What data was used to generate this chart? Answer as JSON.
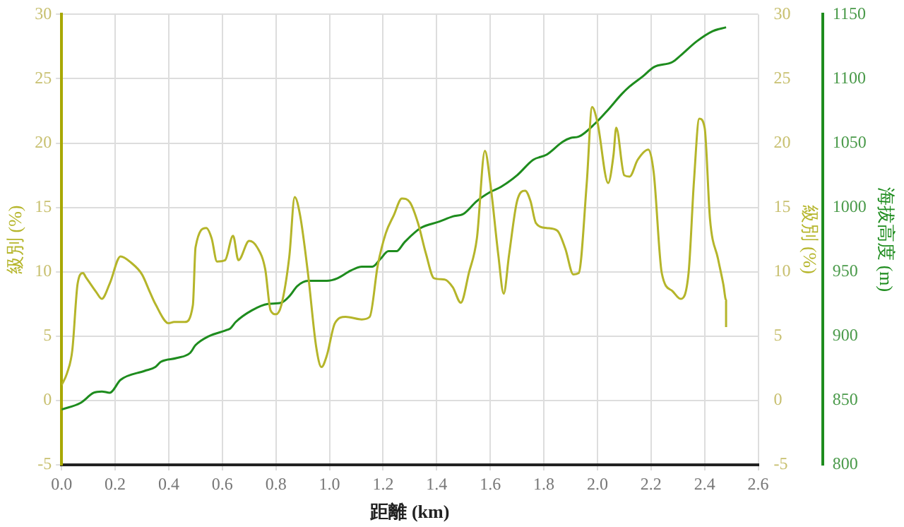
{
  "chart_data": {
    "type": "line",
    "xlabel": "距離 (km)",
    "ylabel": "級別 (%)",
    "y2label": "海拔高度 (m)",
    "y3label": "級別 (%)",
    "xlim": [
      0,
      2.6
    ],
    "xticks": [
      {
        "value": 0,
        "label": "0.0"
      },
      0.2,
      0.4,
      0.6,
      0.8,
      {
        "value": 1,
        "label": "1.0"
      },
      1.2,
      1.4,
      1.6,
      1.8,
      {
        "value": 2,
        "label": "2.0"
      },
      2.2,
      2.4,
      2.6
    ],
    "ylim": [
      -5,
      30
    ],
    "yticks": [
      -5,
      0,
      5,
      10,
      15,
      20,
      25,
      30
    ],
    "y3lim": [
      -5,
      30
    ],
    "y3ticks": [
      -5,
      0,
      5,
      10,
      15,
      20,
      25,
      30
    ],
    "y2lim": [
      800,
      1150
    ],
    "y2ticks": [
      800,
      850,
      900,
      950,
      1000,
      1050,
      1100,
      1150
    ],
    "grid": true,
    "legend": false,
    "marker": "none",
    "line_style": "solid",
    "series": [
      {
        "color": "#b5b52a",
        "x": [
          0,
          0.02,
          0.04,
          0.06,
          0.08,
          0.09,
          0.13,
          0.15,
          0.18,
          0.22,
          0.26,
          0.3,
          0.33,
          0.35,
          0.4,
          0.42,
          0.46,
          0.49,
          0.5,
          0.54,
          0.56,
          0.58,
          0.61,
          0.64,
          0.66,
          0.7,
          0.73,
          0.76,
          0.78,
          0.8,
          0.82,
          0.85,
          0.87,
          0.89,
          0.92,
          0.95,
          0.97,
          0.99,
          1.02,
          1.06,
          1.12,
          1.15,
          1.18,
          1.21,
          1.24,
          1.27,
          1.3,
          1.33,
          1.36,
          1.39,
          1.43,
          1.46,
          1.49,
          1.52,
          1.55,
          1.58,
          1.6,
          1.63,
          1.65,
          1.67,
          1.7,
          1.73,
          1.75,
          1.77,
          1.81,
          1.85,
          1.88,
          1.91,
          1.93,
          1.96,
          1.98,
          2.0,
          2.04,
          2.06,
          2.07,
          2.1,
          2.12,
          2.15,
          2.19,
          2.21,
          2.24,
          2.28,
          2.31,
          2.34,
          2.36,
          2.38,
          2.4,
          2.42,
          2.45,
          2.47,
          2.48,
          2.48
        ],
        "values": [
          1.2,
          2.1,
          3.9,
          9.1,
          9.9,
          9.6,
          8.4,
          7.9,
          9.1,
          11.2,
          10.7,
          9.8,
          8.4,
          7.5,
          6.0,
          6.1,
          6.1,
          7.4,
          11.9,
          13.4,
          12.6,
          10.8,
          10.9,
          12.8,
          10.9,
          12.4,
          11.9,
          10.2,
          7.0,
          6.7,
          7.4,
          11.2,
          15.8,
          14.4,
          9.8,
          4.2,
          2.6,
          3.5,
          6.0,
          6.5,
          6.3,
          6.5,
          10.5,
          13.0,
          14.4,
          15.7,
          15.4,
          13.8,
          11.4,
          9.5,
          9.4,
          8.8,
          7.6,
          9.9,
          12.6,
          19.4,
          16.9,
          11.3,
          8.3,
          11.3,
          15.5,
          16.3,
          15.5,
          13.8,
          13.4,
          13.2,
          11.8,
          9.8,
          9.9,
          16.9,
          22.8,
          21.6,
          16.9,
          19.1,
          21.2,
          17.5,
          17.4,
          18.7,
          19.5,
          17.7,
          9.9,
          8.5,
          7.9,
          9.9,
          17.0,
          21.9,
          21.2,
          14.1,
          11.0,
          9.0,
          7.8,
          5.7
        ]
      },
      {
        "color": "#1e8c1e",
        "axis": "y2",
        "x": [
          0,
          0.07,
          0.12,
          0.15,
          0.18,
          0.22,
          0.31,
          0.35,
          0.37,
          0.43,
          0.48,
          0.5,
          0.55,
          0.62,
          0.63,
          0.65,
          0.71,
          0.77,
          0.82,
          0.85,
          0.88,
          0.92,
          0.99,
          1.03,
          1.08,
          1.12,
          1.16,
          1.19,
          1.22,
          1.25,
          1.28,
          1.34,
          1.41,
          1.46,
          1.5,
          1.55,
          1.6,
          1.64,
          1.7,
          1.76,
          1.81,
          1.87,
          1.9,
          1.93,
          1.99,
          2.04,
          2.09,
          2.12,
          2.17,
          2.21,
          2.28,
          2.31,
          2.37,
          2.43,
          2.48
        ],
        "values": [
          843,
          848,
          856,
          857,
          856,
          866,
          873,
          876,
          880,
          883,
          887,
          893,
          900,
          905,
          906,
          911,
          920,
          925,
          926,
          931,
          939,
          943,
          943,
          945,
          951,
          954,
          954,
          960,
          966,
          966,
          973,
          984,
          989,
          993,
          995,
          1005,
          1012,
          1016,
          1025,
          1037,
          1041,
          1051,
          1054,
          1055,
          1065,
          1076,
          1088,
          1094,
          1102,
          1109,
          1113,
          1118,
          1129,
          1137,
          1140
        ]
      }
    ]
  }
}
